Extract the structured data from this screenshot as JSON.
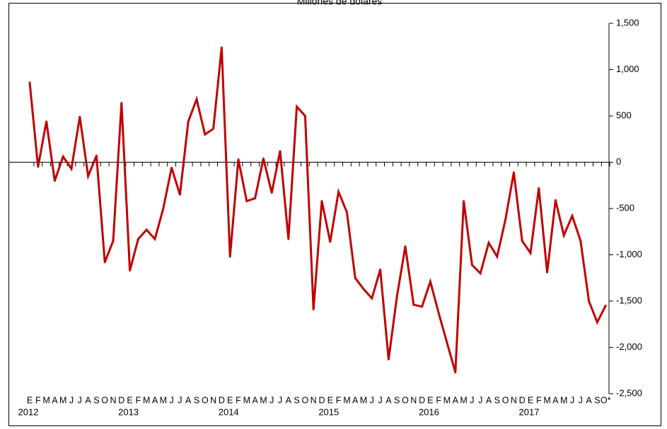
{
  "chart_data": {
    "type": "line",
    "title": "Millones de dólares",
    "xlabel": "",
    "ylabel": "",
    "ylim": [
      -2500,
      1500
    ],
    "yticks": [
      1500,
      1000,
      500,
      0,
      -500,
      -1000,
      -1500,
      -2000,
      -2500
    ],
    "ytick_labels": [
      "1,500",
      "1,000",
      "500",
      "0",
      "-500",
      "-1,000",
      "-1,500",
      "-2,000",
      "-2,500"
    ],
    "y_axis_side": "right",
    "grid": false,
    "legend": "none",
    "line_color": "#c00000",
    "month_labels": [
      "E",
      "F",
      "M",
      "A",
      "M",
      "J",
      "J",
      "A",
      "S",
      "O",
      "N",
      "D",
      "E",
      "F",
      "M",
      "A",
      "M",
      "J",
      "J",
      "A",
      "S",
      "O",
      "N",
      "D",
      "E",
      "F",
      "M",
      "A",
      "M",
      "J",
      "J",
      "A",
      "S",
      "O",
      "N",
      "D",
      "E",
      "F",
      "M",
      "A",
      "M",
      "J",
      "J",
      "A",
      "S",
      "O",
      "N",
      "D",
      "E",
      "F",
      "M",
      "A",
      "M",
      "J",
      "J",
      "A",
      "S",
      "O",
      "N",
      "D",
      "E",
      "F",
      "M",
      "A",
      "M",
      "J",
      "J",
      "A",
      "S",
      "O*"
    ],
    "years": [
      {
        "label": "2012",
        "start_index": 0
      },
      {
        "label": "2013",
        "start_index": 12
      },
      {
        "label": "2014",
        "start_index": 24
      },
      {
        "label": "2015",
        "start_index": 36
      },
      {
        "label": "2016",
        "start_index": 48
      },
      {
        "label": "2017",
        "start_index": 60
      }
    ],
    "series": [
      {
        "values": [
          860,
          -50,
          440,
          -200,
          60,
          -70,
          490,
          -150,
          70,
          -1080,
          -850,
          640,
          -1170,
          -830,
          -730,
          -830,
          -500,
          -60,
          -350,
          440,
          680,
          300,
          360,
          1240,
          -1020,
          30,
          -420,
          -390,
          40,
          -330,
          120,
          -830,
          600,
          500,
          -1590,
          -420,
          -860,
          -320,
          -540,
          -1250,
          -1370,
          -1470,
          -1160,
          -2130,
          -1450,
          -910,
          -1540,
          -1560,
          -1290,
          -1630,
          -1950,
          -2270,
          -420,
          -1110,
          -1200,
          -870,
          -1020,
          -620,
          -110,
          -850,
          -980,
          -280,
          -1190,
          -410,
          -790,
          -580,
          -850,
          -1500,
          -1730,
          -1550
        ]
      }
    ]
  }
}
